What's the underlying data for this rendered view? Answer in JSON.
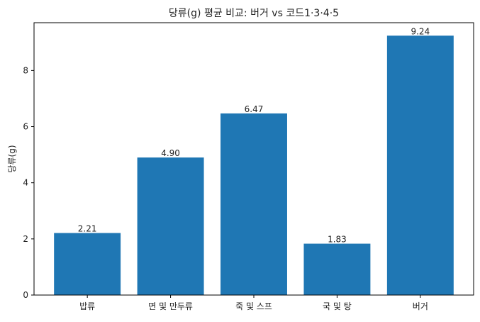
{
  "chart_data": {
    "type": "bar",
    "title": "당류(g) 평균 비교: 버거 vs 코드1·3·4·5",
    "xlabel": "",
    "ylabel": "당류(g)",
    "categories": [
      "밥류",
      "면 및 만두류",
      "죽 및 스프",
      "국 및 탕",
      "버거"
    ],
    "values": [
      2.21,
      4.9,
      6.47,
      1.83,
      9.24
    ],
    "value_labels": [
      "2.21",
      "4.90",
      "6.47",
      "1.83",
      "9.24"
    ],
    "ylim": [
      0,
      9.702
    ],
    "yticks": [
      0,
      2,
      4,
      6,
      8
    ],
    "grid": false,
    "bar_color": "#1f77b4"
  }
}
